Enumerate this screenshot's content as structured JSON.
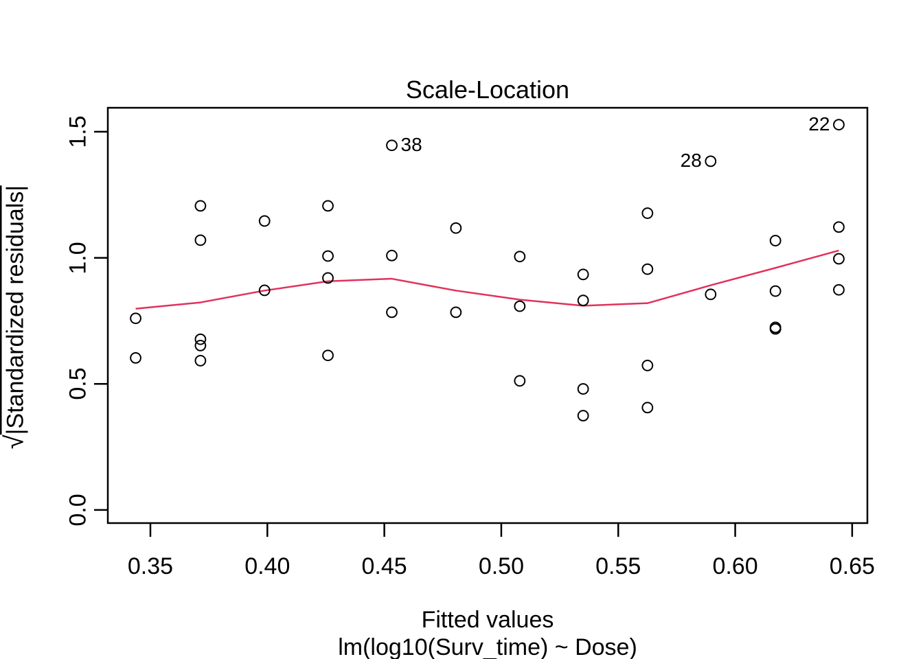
{
  "title": "Scale-Location",
  "axes": {
    "x": {
      "label": "Fitted values",
      "sublabel": "lm(log10(Surv_time) ~ Dose)",
      "ticks": [
        0.35,
        0.4,
        0.45,
        0.5,
        0.55,
        0.6,
        0.65
      ],
      "tick_labels": [
        "0.35",
        "0.40",
        "0.45",
        "0.50",
        "0.55",
        "0.60",
        "0.65"
      ]
    },
    "y": {
      "label_radical": "√",
      "label_radicand": "|Standardized residuals|",
      "ticks": [
        0.0,
        0.5,
        1.0,
        1.5
      ],
      "tick_labels": [
        "0.0",
        "0.5",
        "1.0",
        "1.5"
      ]
    }
  },
  "colors": {
    "points": "#000000",
    "smooth_line": "#e0325a",
    "box": "#000000",
    "background": "#ffffff"
  },
  "chart_data": {
    "type": "scatter",
    "title": "Scale-Location",
    "xlabel": "Fitted values",
    "xlabel2": "lm(log10(Surv_time) ~ Dose)",
    "ylabel": "sqrt(|Standardized residuals|)",
    "xlim": [
      0.3318,
      0.6565
    ],
    "ylim": [
      -0.052,
      1.595
    ],
    "grid": false,
    "points": [
      {
        "x": 0.3437,
        "y": 0.76
      },
      {
        "x": 0.3437,
        "y": 0.603
      },
      {
        "x": 0.3714,
        "y": 1.206
      },
      {
        "x": 0.3714,
        "y": 1.07
      },
      {
        "x": 0.3714,
        "y": 0.677
      },
      {
        "x": 0.3714,
        "y": 0.652
      },
      {
        "x": 0.3714,
        "y": 0.592
      },
      {
        "x": 0.3988,
        "y": 1.146
      },
      {
        "x": 0.3988,
        "y": 0.871
      },
      {
        "x": 0.4259,
        "y": 1.206
      },
      {
        "x": 0.4259,
        "y": 1.007
      },
      {
        "x": 0.4259,
        "y": 0.92
      },
      {
        "x": 0.4259,
        "y": 0.613
      },
      {
        "x": 0.4532,
        "y": 1.446,
        "label": "38",
        "label_side": "right"
      },
      {
        "x": 0.4532,
        "y": 1.009
      },
      {
        "x": 0.4532,
        "y": 0.784
      },
      {
        "x": 0.4806,
        "y": 1.118
      },
      {
        "x": 0.4806,
        "y": 0.784
      },
      {
        "x": 0.5079,
        "y": 1.005
      },
      {
        "x": 0.5079,
        "y": 0.808
      },
      {
        "x": 0.5079,
        "y": 0.512
      },
      {
        "x": 0.535,
        "y": 0.934
      },
      {
        "x": 0.535,
        "y": 0.831
      },
      {
        "x": 0.535,
        "y": 0.48
      },
      {
        "x": 0.535,
        "y": 0.374
      },
      {
        "x": 0.5625,
        "y": 1.177
      },
      {
        "x": 0.5625,
        "y": 0.955
      },
      {
        "x": 0.5625,
        "y": 0.573
      },
      {
        "x": 0.5625,
        "y": 0.406
      },
      {
        "x": 0.5895,
        "y": 1.383,
        "label": "28",
        "label_side": "left"
      },
      {
        "x": 0.5895,
        "y": 0.855
      },
      {
        "x": 0.6172,
        "y": 1.068
      },
      {
        "x": 0.6172,
        "y": 0.868
      },
      {
        "x": 0.6172,
        "y": 0.724
      },
      {
        "x": 0.6172,
        "y": 0.718
      },
      {
        "x": 0.6443,
        "y": 1.528,
        "label": "22",
        "label_side": "left"
      },
      {
        "x": 0.6443,
        "y": 1.122
      },
      {
        "x": 0.6443,
        "y": 0.996
      },
      {
        "x": 0.6443,
        "y": 0.873
      }
    ],
    "smooth_line": [
      {
        "x": 0.3437,
        "y": 0.798
      },
      {
        "x": 0.3714,
        "y": 0.823
      },
      {
        "x": 0.3988,
        "y": 0.87
      },
      {
        "x": 0.4259,
        "y": 0.907
      },
      {
        "x": 0.4532,
        "y": 0.917
      },
      {
        "x": 0.4806,
        "y": 0.87
      },
      {
        "x": 0.5079,
        "y": 0.834
      },
      {
        "x": 0.535,
        "y": 0.81
      },
      {
        "x": 0.5625,
        "y": 0.82
      },
      {
        "x": 0.5895,
        "y": 0.891
      },
      {
        "x": 0.6172,
        "y": 0.96
      },
      {
        "x": 0.6443,
        "y": 1.029
      }
    ],
    "legend": null
  }
}
